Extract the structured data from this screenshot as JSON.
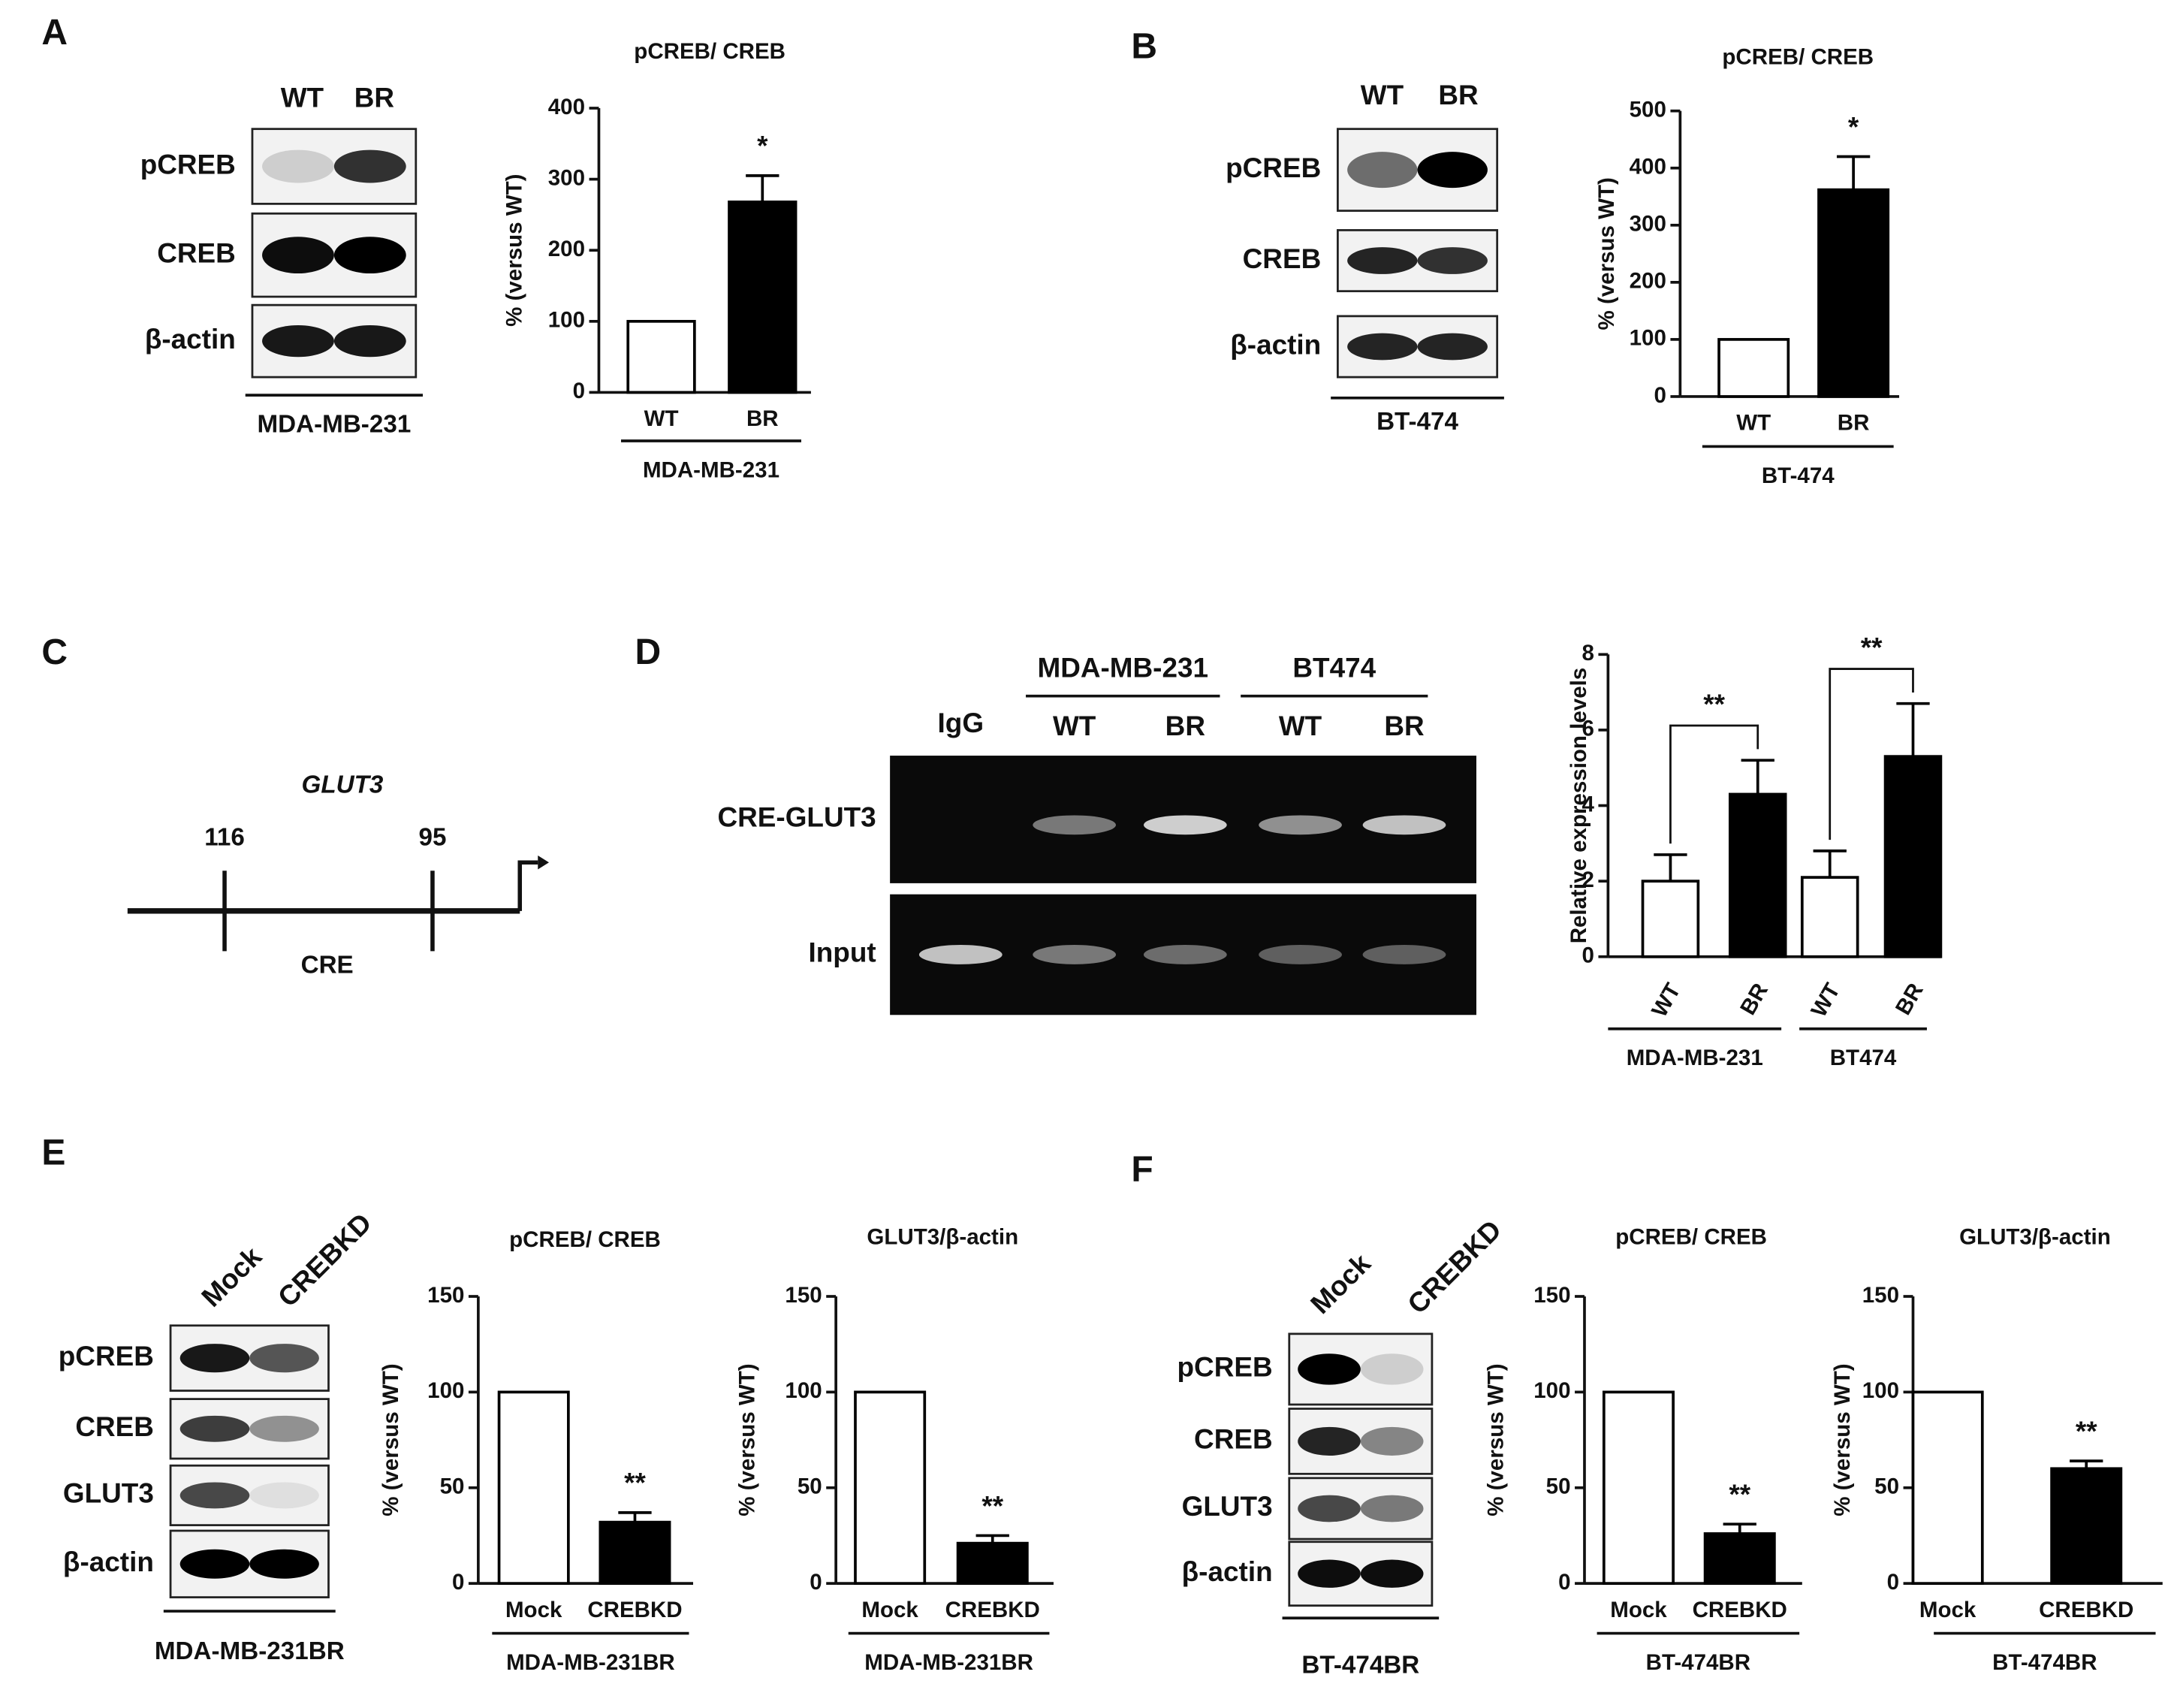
{
  "panel_labels": [
    "A",
    "B",
    "C",
    "D",
    "E",
    "F"
  ],
  "blots": [
    {
      "lanes": [
        "WT",
        "BR"
      ],
      "rows": [
        "pCREB",
        "CREB",
        "β-actin"
      ],
      "cell_line": "MDA-MB-231"
    },
    {
      "lanes": [
        "WT",
        "BR"
      ],
      "rows": [
        "pCREB",
        "CREB",
        "β-actin"
      ],
      "cell_line": "BT-474"
    },
    {
      "lanes": [
        "Mock",
        "CREBKD"
      ],
      "rows": [
        "pCREB",
        "CREB",
        "GLUT3",
        "β-actin"
      ],
      "cell_line": "MDA-MB-231BR"
    },
    {
      "lanes": [
        "Mock",
        "CREBKD"
      ],
      "rows": [
        "pCREB",
        "CREB",
        "GLUT3",
        "β-actin"
      ],
      "cell_line": "BT-474BR"
    }
  ],
  "gel": {
    "control": "IgG",
    "groups": [
      {
        "name": "MDA-MB-231",
        "lanes": [
          "WT",
          "BR"
        ]
      },
      {
        "name": "BT474",
        "lanes": [
          "WT",
          "BR"
        ]
      }
    ],
    "rows": [
      "CRE-GLUT3",
      "Input"
    ]
  },
  "diagram": {
    "gene": "GLUT3",
    "positions": [
      116,
      95
    ],
    "element": "CRE"
  },
  "chart_data": [
    {
      "type": "bar",
      "title": "pCREB/ CREB",
      "ylabel": "% (versus WT)",
      "categories": [
        "WT",
        "BR"
      ],
      "values": [
        100,
        268
      ],
      "errors": [
        null,
        37
      ],
      "colors": [
        "#ffffff",
        "#000000"
      ],
      "ylim": [
        0,
        400
      ],
      "yticks": [
        0,
        100,
        200,
        300,
        400
      ],
      "group_labels": [
        "MDA-MB-231"
      ],
      "annotations": [
        "*"
      ]
    },
    {
      "type": "bar",
      "title": "pCREB/ CREB",
      "ylabel": "% (versus WT)",
      "categories": [
        "WT",
        "BR"
      ],
      "values": [
        100,
        362
      ],
      "errors": [
        null,
        58
      ],
      "colors": [
        "#ffffff",
        "#000000"
      ],
      "ylim": [
        0,
        500
      ],
      "yticks": [
        0,
        100,
        200,
        300,
        400,
        500
      ],
      "group_labels": [
        "BT-474"
      ],
      "annotations": [
        "*"
      ]
    },
    {
      "type": "bar",
      "ylabel": "Relative expression levels",
      "categories": [
        "WT",
        "BR",
        "WT",
        "BR"
      ],
      "values": [
        2.0,
        4.3,
        2.1,
        5.3
      ],
      "errors": [
        0.7,
        0.9,
        0.7,
        1.4
      ],
      "colors": [
        "#ffffff",
        "#000000",
        "#ffffff",
        "#000000"
      ],
      "ylim": [
        0,
        8
      ],
      "yticks": [
        0,
        2,
        4,
        6,
        8
      ],
      "group_labels": [
        "MDA-MB-231",
        "BT474"
      ],
      "annotations": [
        "**",
        "**"
      ]
    },
    {
      "type": "bar",
      "title": "pCREB/ CREB",
      "ylabel": "% (versus WT)",
      "categories": [
        "Mock",
        "CREBKD"
      ],
      "values": [
        100,
        32
      ],
      "errors": [
        null,
        5
      ],
      "colors": [
        "#ffffff",
        "#000000"
      ],
      "ylim": [
        0,
        150
      ],
      "yticks": [
        0,
        50,
        100,
        150
      ],
      "group_labels": [
        "MDA-MB-231BR"
      ],
      "annotations": [
        "**"
      ]
    },
    {
      "type": "bar",
      "title": "GLUT3/β-actin",
      "ylabel": "% (versus WT)",
      "categories": [
        "Mock",
        "CREBKD"
      ],
      "values": [
        100,
        21
      ],
      "errors": [
        null,
        4
      ],
      "colors": [
        "#ffffff",
        "#000000"
      ],
      "ylim": [
        0,
        150
      ],
      "yticks": [
        0,
        50,
        100,
        150
      ],
      "group_labels": [
        "MDA-MB-231BR"
      ],
      "annotations": [
        "**"
      ]
    },
    {
      "type": "bar",
      "title": "pCREB/ CREB",
      "ylabel": "% (versus WT)",
      "categories": [
        "Mock",
        "CREBKD"
      ],
      "values": [
        100,
        26
      ],
      "errors": [
        null,
        5
      ],
      "colors": [
        "#ffffff",
        "#000000"
      ],
      "ylim": [
        0,
        150
      ],
      "yticks": [
        0,
        50,
        100,
        150
      ],
      "group_labels": [
        "BT-474BR"
      ],
      "annotations": [
        "**"
      ]
    },
    {
      "type": "bar",
      "title": "GLUT3/β-actin",
      "ylabel": "% (versus WT)",
      "categories": [
        "Mock",
        "CREBKD"
      ],
      "values": [
        100,
        60
      ],
      "errors": [
        null,
        4
      ],
      "colors": [
        "#ffffff",
        "#000000"
      ],
      "ylim": [
        0,
        150
      ],
      "yticks": [
        0,
        50,
        100,
        150
      ],
      "group_labels": [
        "BT-474BR"
      ],
      "annotations": [
        "**"
      ]
    }
  ]
}
